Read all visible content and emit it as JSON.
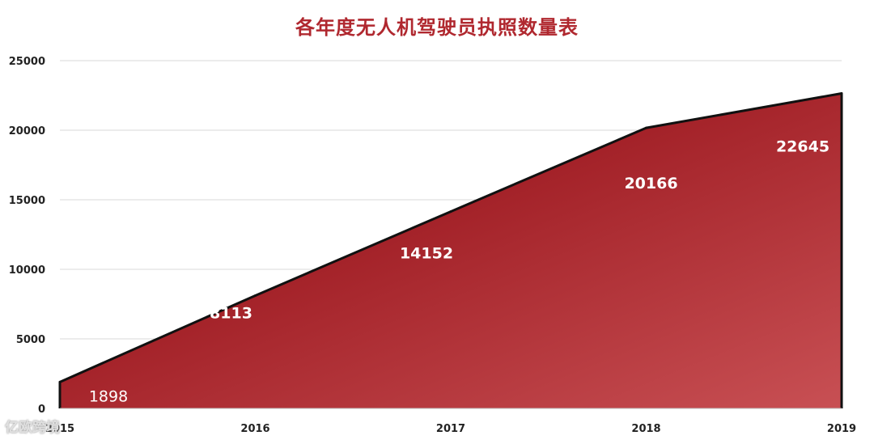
{
  "chart_data": {
    "type": "area",
    "title": "各年度无人机驾驶员执照数量表",
    "categories": [
      "2015",
      "2016",
      "2017",
      "2018",
      "2019"
    ],
    "series": [
      {
        "values": [
          1898,
          8113,
          14152,
          20166,
          22645
        ]
      }
    ],
    "data_labels": [
      "1898",
      "8113",
      "14152",
      "20166",
      "22645"
    ],
    "yticks": [
      "0",
      "5000",
      "10000",
      "15000",
      "20000",
      "25000"
    ],
    "ylim": [
      0,
      25000
    ],
    "grid": true,
    "legend": "none",
    "colors": {
      "fill_dark": "#9e1b22",
      "fill_light": "#c85054",
      "line": "#111111",
      "title": "#b0282f",
      "grid": "#d9d9d9"
    }
  },
  "watermark": "亿欧跨境"
}
